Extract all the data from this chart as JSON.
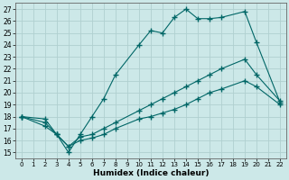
{
  "xlabel": "Humidex (Indice chaleur)",
  "background_color": "#cce8e8",
  "grid_color": "#b0d0d0",
  "line_color": "#006666",
  "xlim": [
    -0.5,
    22.5
  ],
  "ylim": [
    14.5,
    27.5
  ],
  "xticks": [
    0,
    1,
    2,
    3,
    4,
    5,
    6,
    7,
    8,
    9,
    10,
    11,
    12,
    13,
    14,
    15,
    16,
    17,
    18,
    19,
    20,
    21,
    22
  ],
  "yticks": [
    15,
    16,
    17,
    18,
    19,
    20,
    21,
    22,
    23,
    24,
    25,
    26,
    27
  ],
  "line1_x": [
    0,
    2,
    3,
    4,
    5,
    6,
    7,
    8,
    10,
    11,
    12,
    13,
    14,
    15,
    16,
    17,
    19,
    20,
    22
  ],
  "line1_y": [
    18.0,
    17.8,
    16.5,
    15.0,
    16.5,
    18.0,
    19.5,
    21.5,
    24.0,
    25.2,
    25.0,
    26.3,
    27.0,
    26.2,
    26.2,
    26.3,
    26.8,
    24.2,
    19.2
  ],
  "line2_x": [
    0,
    2,
    3,
    4,
    5,
    6,
    7,
    8,
    10,
    11,
    12,
    13,
    14,
    15,
    16,
    17,
    19,
    20,
    22
  ],
  "line2_y": [
    18.0,
    17.5,
    16.5,
    15.5,
    16.3,
    16.5,
    17.0,
    17.5,
    18.5,
    19.0,
    19.5,
    20.0,
    20.5,
    21.0,
    21.5,
    22.0,
    22.8,
    21.5,
    19.3
  ],
  "line3_x": [
    0,
    2,
    3,
    4,
    5,
    6,
    7,
    8,
    10,
    11,
    12,
    13,
    14,
    15,
    16,
    17,
    19,
    20,
    22
  ],
  "line3_y": [
    18.0,
    17.2,
    16.5,
    15.5,
    16.0,
    16.2,
    16.5,
    17.0,
    17.8,
    18.0,
    18.3,
    18.6,
    19.0,
    19.5,
    20.0,
    20.3,
    21.0,
    20.5,
    19.0
  ]
}
